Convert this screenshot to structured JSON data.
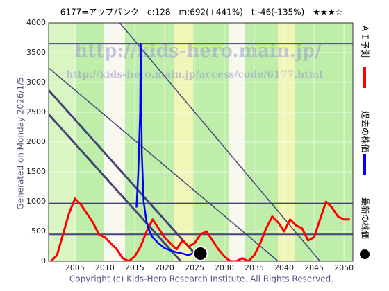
{
  "chart_data": {
    "type": "line",
    "title": "6177=アップバンク　c:128　m:692(+441%)　t:-46(-135%)　★★★☆",
    "side_note": "Generated on Monday 2026/1/5.",
    "footer": "Copyright (c) Kids-Hero Research Institute. All Rights Reserved.",
    "watermarks": [
      "http://kids-hero.main.jp/",
      "http://kids-hero.main.jp/access/code/6177.html"
    ],
    "xlim": [
      2000.6,
      2051.5
    ],
    "xticks": [
      2005,
      2010,
      2015,
      2020,
      2025,
      2030,
      2035,
      2040,
      2045,
      2050
    ],
    "ylim": [
      0,
      4000
    ],
    "yticks": [
      0,
      500,
      1000,
      1500,
      2000,
      2500,
      3000,
      3500,
      4000
    ],
    "grid": true,
    "series": [
      {
        "name": "ＡＩ予測",
        "color": "#ff0000",
        "x": [
          2001,
          2002,
          2003,
          2004,
          2005,
          2006,
          2007,
          2008,
          2009,
          2010,
          2011,
          2012,
          2013,
          2014,
          2015,
          2016,
          2017,
          2018,
          2019,
          2020,
          2021,
          2022,
          2023,
          2024,
          2025,
          2026,
          2027,
          2028,
          2029,
          2030,
          2031,
          2032,
          2033,
          2034,
          2035,
          2036,
          2037,
          2038,
          2039,
          2040,
          2041,
          2042,
          2043,
          2044,
          2045,
          2046,
          2047,
          2048,
          2049,
          2050,
          2051
        ],
        "values": [
          0,
          100,
          450,
          800,
          1050,
          950,
          800,
          650,
          450,
          400,
          300,
          200,
          50,
          0,
          80,
          250,
          500,
          700,
          550,
          400,
          300,
          200,
          350,
          250,
          300,
          450,
          500,
          350,
          200,
          80,
          0,
          0,
          50,
          0,
          100,
          300,
          550,
          750,
          650,
          500,
          700,
          600,
          550,
          350,
          400,
          700,
          1000,
          900,
          750,
          700,
          700
        ]
      },
      {
        "name": "過去の株価",
        "color": "#0000ff",
        "x": [
          2015.3,
          2015.6,
          2015.9,
          2016.0,
          2016.2,
          2016.5,
          2017.0,
          2017.5,
          2018.0,
          2019.0,
          2020.0,
          2021.0,
          2022.0,
          2023.0,
          2024.0,
          2025.0,
          2026.0
        ],
        "values": [
          900,
          1500,
          2500,
          3650,
          1800,
          1000,
          650,
          500,
          400,
          300,
          220,
          180,
          150,
          130,
          100,
          150,
          128
        ]
      }
    ],
    "latest": {
      "name": "最新の株価",
      "x": 2026.0,
      "value": 128
    },
    "levels": [
      3650,
      970,
      450
    ],
    "trend_lines": [
      {
        "x": [
          2000.6,
          2026.2
        ],
        "values": [
          2870,
          0
        ],
        "width": 3
      },
      {
        "x": [
          2000.6,
          2022.7
        ],
        "values": [
          2465,
          0
        ],
        "width": 3
      },
      {
        "x": [
          2000.6,
          2039.0
        ],
        "values": [
          3244,
          0
        ],
        "width": 1.5
      },
      {
        "x": [
          2012.5,
          2046.0
        ],
        "values": [
          4000,
          0
        ],
        "width": 1.5
      }
    ]
  }
}
